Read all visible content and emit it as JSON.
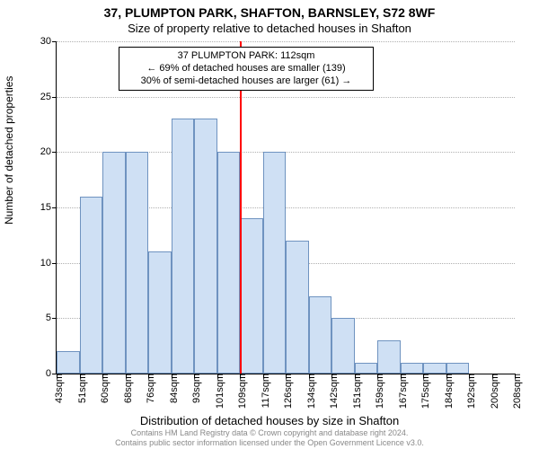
{
  "title": "37, PLUMPTON PARK, SHAFTON, BARNSLEY, S72 8WF",
  "subtitle": "Size of property relative to detached houses in Shafton",
  "yaxis_title": "Number of detached properties",
  "xaxis_title": "Distribution of detached houses by size in Shafton",
  "footer_line1": "Contains HM Land Registry data © Crown copyright and database right 2024.",
  "footer_line2": "Contains public sector information licensed under the Open Government Licence v3.0.",
  "chart": {
    "type": "histogram",
    "background_color": "#ffffff",
    "grid_color": "#b0b0b0",
    "bar_fill": "#cfe0f4",
    "bar_border": "#6f93c0",
    "refline_color": "#ff0000",
    "ylim": [
      0,
      30
    ],
    "yticks": [
      0,
      5,
      10,
      15,
      20,
      25,
      30
    ],
    "xticks": [
      "43sqm",
      "51sqm",
      "60sqm",
      "68sqm",
      "76sqm",
      "84sqm",
      "93sqm",
      "101sqm",
      "109sqm",
      "117sqm",
      "126sqm",
      "134sqm",
      "142sqm",
      "151sqm",
      "159sqm",
      "167sqm",
      "175sqm",
      "184sqm",
      "192sqm",
      "200sqm",
      "208sqm"
    ],
    "values": [
      2,
      16,
      20,
      20,
      11,
      23,
      23,
      20,
      14,
      20,
      12,
      7,
      5,
      1,
      3,
      1,
      1,
      1,
      0,
      0
    ],
    "reference_line_bin_index": 8,
    "annotation": {
      "line1": "37 PLUMPTON PARK: 112sqm",
      "line2": "← 69% of detached houses are smaller (139)",
      "line3": "30% of semi-detached houses are larger (61) →",
      "border_color": "#000000",
      "background_color": "#ffffff",
      "fontsize": 11
    },
    "title_fontsize": 14,
    "subtitle_fontsize": 13,
    "axis_label_fontsize": 12,
    "tick_fontsize": 11
  }
}
